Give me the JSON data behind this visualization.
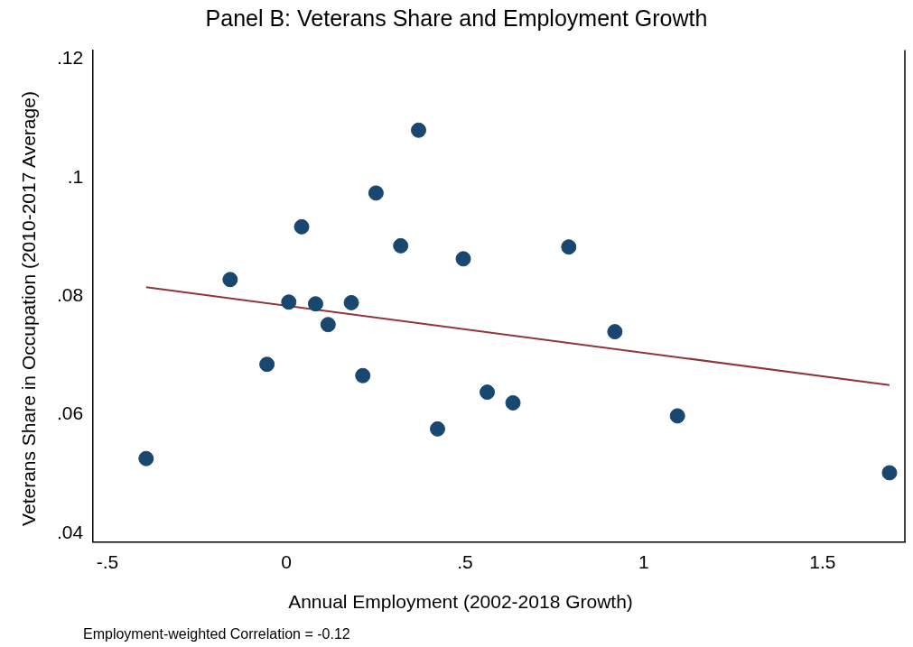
{
  "chart_data": {
    "type": "scatter",
    "title": "Panel B: Veterans Share and Employment Growth",
    "xlabel": "Annual Employment (2002-2018 Growth)",
    "ylabel": "Veterans Share in Occupation (2010-2017 Average)",
    "annotations": [
      "Employment-weighted Correlation = -0.12"
    ],
    "xlim": [
      -0.54,
      1.73
    ],
    "xticks": [
      {
        "value": -0.5,
        "label": "-.5"
      },
      0,
      {
        "value": 0.5,
        "label": ".5"
      },
      1,
      1.5
    ],
    "ylim": [
      0.0385,
      0.1215
    ],
    "yticks": [
      {
        "value": 0.04,
        "label": ".04"
      },
      {
        "value": 0.06,
        "label": ".06"
      },
      {
        "value": 0.08,
        "label": ".08"
      },
      {
        "value": 0.1,
        "label": ".1"
      },
      {
        "value": 0.12,
        "label": ".12"
      }
    ],
    "grid": false,
    "legend": false,
    "marker": "circle",
    "series": [
      {
        "color": "#1a476f",
        "x": [
          -0.392,
          -0.157,
          -0.054,
          0.007,
          0.043,
          0.082,
          0.117,
          0.182,
          0.214,
          0.251,
          0.32,
          0.37,
          0.423,
          0.495,
          0.562,
          0.634,
          0.79,
          0.919,
          1.094,
          1.687
        ],
        "values": [
          0.0526,
          0.0828,
          0.0685,
          0.079,
          0.0917,
          0.0787,
          0.0752,
          0.0789,
          0.0666,
          0.0974,
          0.0885,
          0.108,
          0.0576,
          0.0863,
          0.0638,
          0.062,
          0.0883,
          0.074,
          0.0598,
          0.0502
        ]
      },
      {
        "type": "line",
        "color": "#90353b",
        "x": [
          -0.392,
          1.687
        ],
        "values": [
          0.0815,
          0.065
        ],
        "marker": "none"
      }
    ]
  }
}
